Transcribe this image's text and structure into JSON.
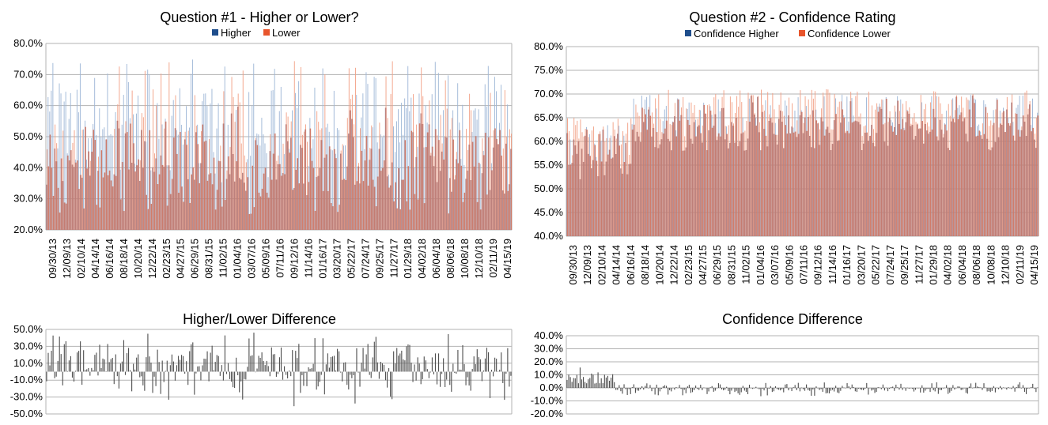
{
  "chart_data": [
    {
      "id": "q1",
      "type": "bar",
      "title": "Question #1 - Higher or Lower?",
      "series": [
        {
          "name": "Higher",
          "color": "#1f4e8c"
        },
        {
          "name": "Lower",
          "color": "#e8552c"
        }
      ],
      "ylim": [
        0.2,
        0.8
      ],
      "y_ticks": [
        "20.0%",
        "30.0%",
        "40.0%",
        "50.0%",
        "60.0%",
        "70.0%",
        "80.0%"
      ],
      "x_tick_labels": [
        "09/30/13",
        "12/09/13",
        "02/10/14",
        "04/14/14",
        "06/16/14",
        "08/18/14",
        "10/20/14",
        "12/22/14",
        "02/23/15",
        "04/27/15",
        "06/29/15",
        "08/31/15",
        "11/02/15",
        "01/04/16",
        "03/07/16",
        "05/09/16",
        "07/11/16",
        "09/12/16",
        "11/14/16",
        "01/16/17",
        "03/20/17",
        "05/22/17",
        "07/24/17",
        "09/25/17",
        "11/27/17",
        "01/29/18",
        "04/02/18",
        "06/04/18",
        "08/06/18",
        "10/08/18",
        "12/10/18",
        "02/11/19",
        "04/15/19"
      ],
      "n_points": 290,
      "value_range_note": "",
      "higher_min": 0.3,
      "higher_max": 0.8
    },
    {
      "id": "q2",
      "type": "bar",
      "title": "Question #2 - Confidence Rating",
      "series": [
        {
          "name": "Confidence Higher",
          "color": "#1f4e8c"
        },
        {
          "name": "Confidence Lower",
          "color": "#e8552c"
        }
      ],
      "ylim": [
        0.4,
        0.8
      ],
      "y_ticks": [
        "40.0%",
        "45.0%",
        "50.0%",
        "55.0%",
        "60.0%",
        "65.0%",
        "70.0%",
        "75.0%",
        "80.0%"
      ],
      "x_tick_labels": [
        "09/30/13",
        "12/09/13",
        "02/10/14",
        "04/14/14",
        "06/16/14",
        "08/18/14",
        "10/20/14",
        "12/22/14",
        "02/23/15",
        "04/27/15",
        "06/29/15",
        "08/31/15",
        "11/02/15",
        "01/04/16",
        "03/07/16",
        "05/09/16",
        "07/11/16",
        "09/12/16",
        "11/14/16",
        "01/16/17",
        "03/20/17",
        "05/22/17",
        "07/24/17",
        "09/25/17",
        "11/27/17",
        "01/29/18",
        "04/02/18",
        "06/04/18",
        "08/06/18",
        "10/08/18",
        "12/10/18",
        "02/11/19",
        "04/15/19"
      ],
      "n_points": 290
    },
    {
      "id": "d1",
      "type": "bar",
      "title": "Higher/Lower Difference",
      "ylim": [
        -0.5,
        0.5
      ],
      "y_ticks": [
        "-50.0%",
        "-30.0%",
        "-10.0%",
        "10.0%",
        "30.0%",
        "50.0%"
      ],
      "n_points": 290
    },
    {
      "id": "d2",
      "type": "bar",
      "title": "Confidence Difference",
      "ylim": [
        -0.2,
        0.4
      ],
      "y_ticks": [
        "-20.0%",
        "-10.0%",
        "0.0%",
        "10.0%",
        "20.0%",
        "30.0%",
        "40.0%"
      ],
      "n_points": 290
    }
  ]
}
